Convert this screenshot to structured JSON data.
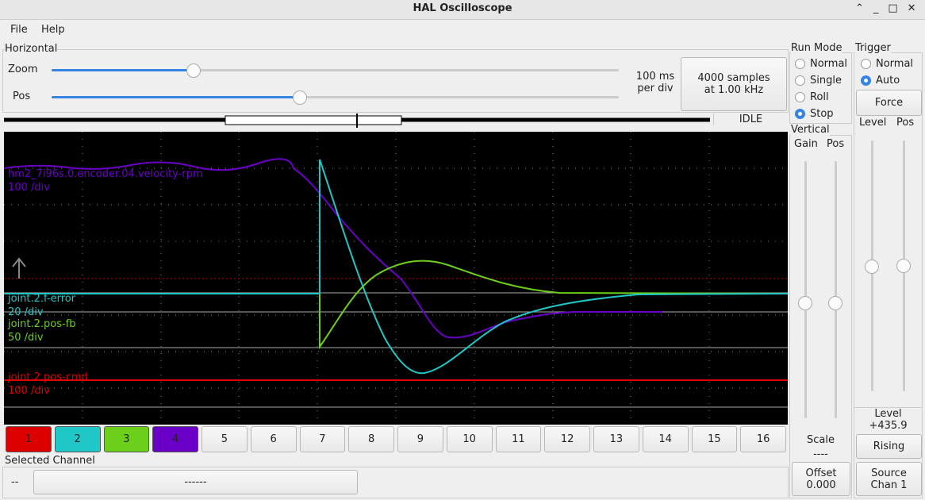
{
  "window": {
    "title": "HAL Oscilloscope"
  },
  "menu": [
    "File",
    "Help"
  ],
  "horizontal": {
    "title": "Horizontal",
    "zoom_label": "Zoom",
    "pos_label": "Pos",
    "scale_lines": [
      "100 ms",
      "per div"
    ],
    "samples_lines": [
      "4000 samples",
      "at 1.00 kHz"
    ],
    "state": "IDLE"
  },
  "traces": [
    {
      "name": "hm2_7i96s.0.encoder.04.velocity-rpm",
      "scale": "100 /div"
    },
    {
      "name": "joint.2.f-error",
      "scale": "20 /div"
    },
    {
      "name": "joint.2.pos-fb",
      "scale": "50 /div"
    },
    {
      "name": "joint.2.pos-cmd",
      "scale": "100 /div"
    }
  ],
  "channels": [
    "1",
    "2",
    "3",
    "4",
    "5",
    "6",
    "7",
    "8",
    "9",
    "10",
    "11",
    "12",
    "13",
    "14",
    "15",
    "16"
  ],
  "selected": {
    "title": "Selected Channel",
    "value": "--",
    "button": "------"
  },
  "run_mode": {
    "title": "Run Mode",
    "options": [
      "Normal",
      "Single",
      "Roll",
      "Stop"
    ]
  },
  "vertical": {
    "title": "Vertical",
    "gain": "Gain",
    "pos": "Pos",
    "scale_label": "Scale",
    "scale_value": "----",
    "offset_lines": [
      "Offset",
      "0.000"
    ]
  },
  "trigger": {
    "title": "Trigger",
    "options": [
      "Normal",
      "Auto"
    ],
    "force": "Force",
    "level": "Level",
    "pos": "Pos",
    "level_lines": [
      "Level",
      "+435.9"
    ],
    "edge": "Rising",
    "source_lines": [
      "Source",
      "Chan  1"
    ]
  }
}
